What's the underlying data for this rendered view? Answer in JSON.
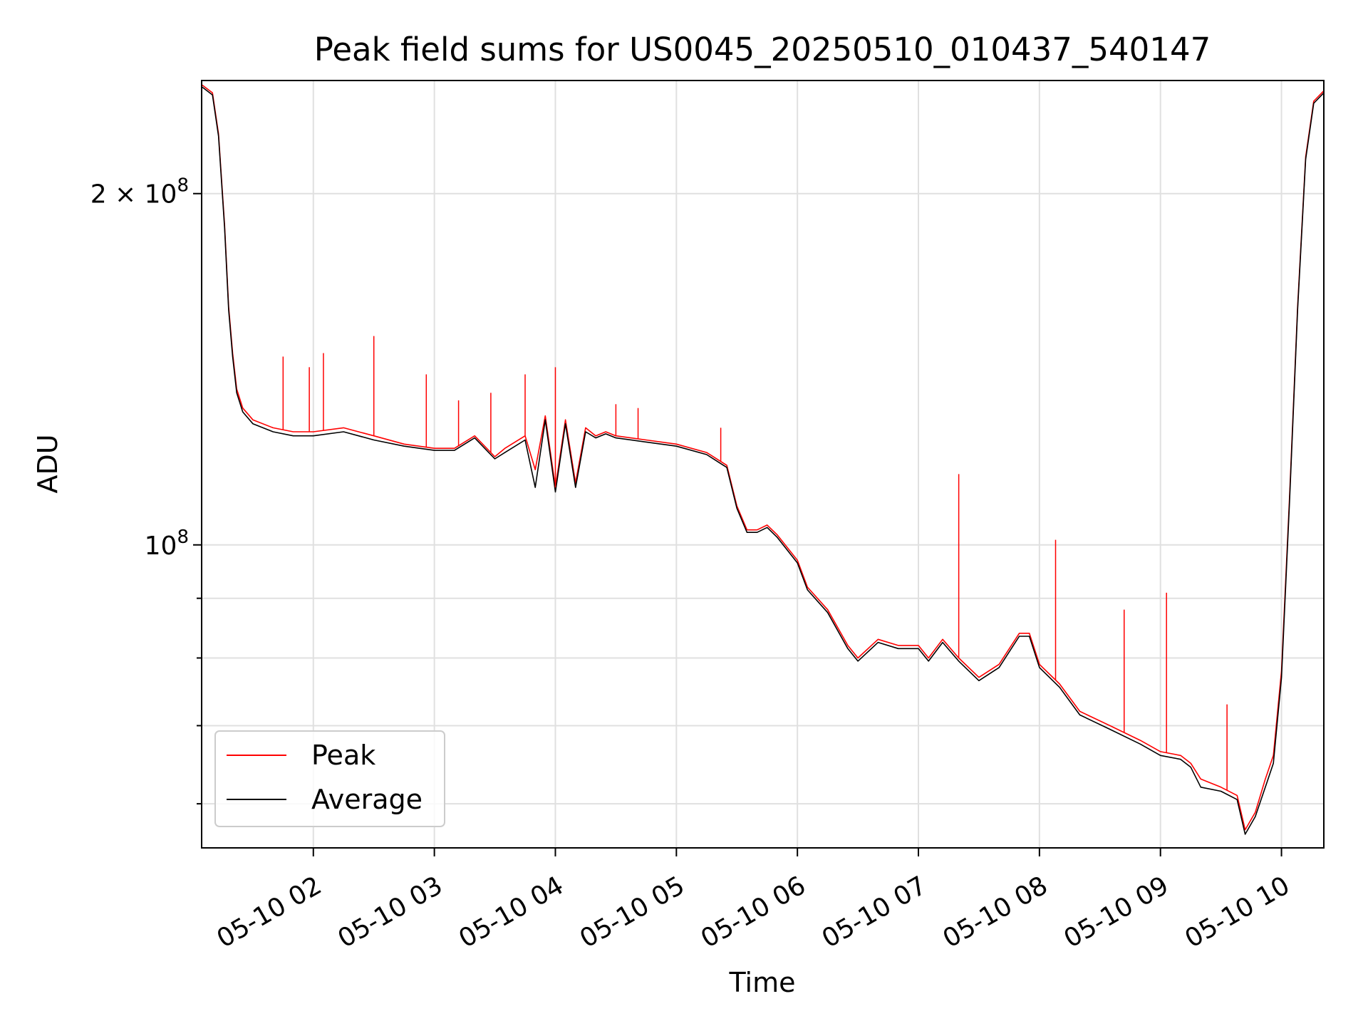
{
  "chart_data": {
    "type": "line",
    "title": "Peak field sums for US0045_20250510_010437_540147",
    "xlabel": "Time",
    "ylabel": "ADU",
    "y_scale": "log",
    "ylim": [
      55000000,
      250000000
    ],
    "xlim": [
      "2025-05-10 01:04:37",
      "2025-05-10 10:21:00"
    ],
    "x_ticks": [
      {
        "value": "2025-05-10 02:00",
        "label": "05-10 02"
      },
      {
        "value": "2025-05-10 03:00",
        "label": "05-10 03"
      },
      {
        "value": "2025-05-10 04:00",
        "label": "05-10 04"
      },
      {
        "value": "2025-05-10 05:00",
        "label": "05-10 05"
      },
      {
        "value": "2025-05-10 06:00",
        "label": "05-10 06"
      },
      {
        "value": "2025-05-10 07:00",
        "label": "05-10 07"
      },
      {
        "value": "2025-05-10 08:00",
        "label": "05-10 08"
      },
      {
        "value": "2025-05-10 09:00",
        "label": "05-10 09"
      },
      {
        "value": "2025-05-10 10:00",
        "label": "05-10 10"
      }
    ],
    "y_ticks": [
      {
        "value": 200000000,
        "label_base": "2 × 10",
        "label_exp": "8"
      },
      {
        "value": 100000000,
        "label_base": "10",
        "label_exp": "8"
      }
    ],
    "y_minor_gridlines": [
      60000000,
      70000000,
      80000000,
      90000000
    ],
    "grid": true,
    "legend_position": "lower-left",
    "series": [
      {
        "name": "Peak",
        "color": "#ff0000",
        "x": [
          "2025-05-10 01:04:37",
          "2025-05-10 01:10",
          "2025-05-10 01:13",
          "2025-05-10 01:16",
          "2025-05-10 01:18",
          "2025-05-10 01:20",
          "2025-05-10 01:22",
          "2025-05-10 01:25",
          "2025-05-10 01:30",
          "2025-05-10 01:40",
          "2025-05-10 01:50",
          "2025-05-10 02:00",
          "2025-05-10 02:15",
          "2025-05-10 02:30",
          "2025-05-10 02:45",
          "2025-05-10 03:00",
          "2025-05-10 03:10",
          "2025-05-10 03:20",
          "2025-05-10 03:30",
          "2025-05-10 03:35",
          "2025-05-10 03:45",
          "2025-05-10 03:50",
          "2025-05-10 03:55",
          "2025-05-10 04:00",
          "2025-05-10 04:05",
          "2025-05-10 04:10",
          "2025-05-10 04:15",
          "2025-05-10 04:20",
          "2025-05-10 04:25",
          "2025-05-10 04:30",
          "2025-05-10 04:45",
          "2025-05-10 05:00",
          "2025-05-10 05:15",
          "2025-05-10 05:25",
          "2025-05-10 05:30",
          "2025-05-10 05:35",
          "2025-05-10 05:40",
          "2025-05-10 05:45",
          "2025-05-10 05:50",
          "2025-05-10 06:00",
          "2025-05-10 06:05",
          "2025-05-10 06:15",
          "2025-05-10 06:25",
          "2025-05-10 06:30",
          "2025-05-10 06:40",
          "2025-05-10 06:50",
          "2025-05-10 07:00",
          "2025-05-10 07:05",
          "2025-05-10 07:12",
          "2025-05-10 07:20",
          "2025-05-10 07:30",
          "2025-05-10 07:40",
          "2025-05-10 07:50",
          "2025-05-10 07:55",
          "2025-05-10 08:00",
          "2025-05-10 08:10",
          "2025-05-10 08:20",
          "2025-05-10 08:35",
          "2025-05-10 08:50",
          "2025-05-10 09:00",
          "2025-05-10 09:10",
          "2025-05-10 09:15",
          "2025-05-10 09:20",
          "2025-05-10 09:30",
          "2025-05-10 09:38",
          "2025-05-10 09:42",
          "2025-05-10 09:47",
          "2025-05-10 09:52",
          "2025-05-10 09:56",
          "2025-05-10 10:00",
          "2025-05-10 10:04",
          "2025-05-10 10:08",
          "2025-05-10 10:12",
          "2025-05-10 10:16",
          "2025-05-10 10:21"
        ],
        "values": [
          248000000,
          244000000,
          225000000,
          188000000,
          160000000,
          146000000,
          136000000,
          131000000,
          128000000,
          126000000,
          125000000,
          125000000,
          126000000,
          124000000,
          122000000,
          121000000,
          121000000,
          124000000,
          119000000,
          121000000,
          124000000,
          116000000,
          129000000,
          112000000,
          128000000,
          113000000,
          126000000,
          124000000,
          125000000,
          124000000,
          123000000,
          122000000,
          120000000,
          117000000,
          108000000,
          103000000,
          103000000,
          104000000,
          102000000,
          97000000,
          92000000,
          88000000,
          82000000,
          80000000,
          83000000,
          82000000,
          82000000,
          80000000,
          83000000,
          80000000,
          77000000,
          79000000,
          84000000,
          84000000,
          79000000,
          76000000,
          72000000,
          70000000,
          68000000,
          66500000,
          66000000,
          65000000,
          63000000,
          62000000,
          61000000,
          57000000,
          59000000,
          63000000,
          66000000,
          78000000,
          110000000,
          160000000,
          215000000,
          240000000,
          245000000
        ]
      },
      {
        "name": "Average",
        "color": "#000000",
        "x": [
          "2025-05-10 01:04:37",
          "2025-05-10 01:10",
          "2025-05-10 01:13",
          "2025-05-10 01:16",
          "2025-05-10 01:18",
          "2025-05-10 01:20",
          "2025-05-10 01:22",
          "2025-05-10 01:25",
          "2025-05-10 01:30",
          "2025-05-10 01:40",
          "2025-05-10 01:50",
          "2025-05-10 02:00",
          "2025-05-10 02:15",
          "2025-05-10 02:30",
          "2025-05-10 02:45",
          "2025-05-10 03:00",
          "2025-05-10 03:10",
          "2025-05-10 03:20",
          "2025-05-10 03:30",
          "2025-05-10 03:35",
          "2025-05-10 03:45",
          "2025-05-10 03:50",
          "2025-05-10 03:55",
          "2025-05-10 04:00",
          "2025-05-10 04:05",
          "2025-05-10 04:10",
          "2025-05-10 04:15",
          "2025-05-10 04:20",
          "2025-05-10 04:25",
          "2025-05-10 04:30",
          "2025-05-10 04:45",
          "2025-05-10 05:00",
          "2025-05-10 05:15",
          "2025-05-10 05:25",
          "2025-05-10 05:30",
          "2025-05-10 05:35",
          "2025-05-10 05:40",
          "2025-05-10 05:45",
          "2025-05-10 05:50",
          "2025-05-10 06:00",
          "2025-05-10 06:05",
          "2025-05-10 06:15",
          "2025-05-10 06:25",
          "2025-05-10 06:30",
          "2025-05-10 06:40",
          "2025-05-10 06:50",
          "2025-05-10 07:00",
          "2025-05-10 07:05",
          "2025-05-10 07:12",
          "2025-05-10 07:20",
          "2025-05-10 07:30",
          "2025-05-10 07:40",
          "2025-05-10 07:50",
          "2025-05-10 07:55",
          "2025-05-10 08:00",
          "2025-05-10 08:10",
          "2025-05-10 08:20",
          "2025-05-10 08:35",
          "2025-05-10 08:50",
          "2025-05-10 09:00",
          "2025-05-10 09:10",
          "2025-05-10 09:15",
          "2025-05-10 09:20",
          "2025-05-10 09:30",
          "2025-05-10 09:38",
          "2025-05-10 09:42",
          "2025-05-10 09:47",
          "2025-05-10 09:52",
          "2025-05-10 09:56",
          "2025-05-10 10:00",
          "2025-05-10 10:04",
          "2025-05-10 10:08",
          "2025-05-10 10:12",
          "2025-05-10 10:16",
          "2025-05-10 10:21"
        ],
        "values": [
          247000000,
          243000000,
          224000000,
          187000000,
          159000000,
          145000000,
          135000000,
          130000000,
          127000000,
          125000000,
          124000000,
          124000000,
          125000000,
          123000000,
          121500000,
          120500000,
          120500000,
          123500000,
          118500000,
          120000000,
          123000000,
          112000000,
          128000000,
          111000000,
          127000000,
          112000000,
          125000000,
          123500000,
          124500000,
          123500000,
          122500000,
          121500000,
          119500000,
          116500000,
          107500000,
          102500000,
          102500000,
          103500000,
          101500000,
          96500000,
          91500000,
          87500000,
          81500000,
          79500000,
          82500000,
          81500000,
          81500000,
          79500000,
          82500000,
          79500000,
          76500000,
          78500000,
          83500000,
          83500000,
          78500000,
          75500000,
          71500000,
          69500000,
          67500000,
          66000000,
          65500000,
          64500000,
          62000000,
          61500000,
          60500000,
          56500000,
          58500000,
          62000000,
          65000000,
          77000000,
          109000000,
          159000000,
          214000000,
          239000000,
          244000000
        ]
      }
    ],
    "spikes": {
      "name": "Peak",
      "x": [
        "2025-05-10 01:45",
        "2025-05-10 01:58",
        "2025-05-10 02:05",
        "2025-05-10 02:30",
        "2025-05-10 02:56",
        "2025-05-10 03:12",
        "2025-05-10 03:28",
        "2025-05-10 03:45",
        "2025-05-10 04:00",
        "2025-05-10 04:30",
        "2025-05-10 04:41",
        "2025-05-10 05:22",
        "2025-05-10 07:20",
        "2025-05-10 08:08",
        "2025-05-10 08:42",
        "2025-05-10 09:03",
        "2025-05-10 09:33"
      ],
      "values": [
        145000000,
        142000000,
        146000000,
        151000000,
        140000000,
        133000000,
        135000000,
        140000000,
        142000000,
        132000000,
        131000000,
        126000000,
        115000000,
        101000000,
        88000000,
        91000000,
        73000000
      ]
    }
  },
  "legend": {
    "items": [
      {
        "label": "Peak",
        "color": "#ff0000"
      },
      {
        "label": "Average",
        "color": "#000000"
      }
    ]
  }
}
